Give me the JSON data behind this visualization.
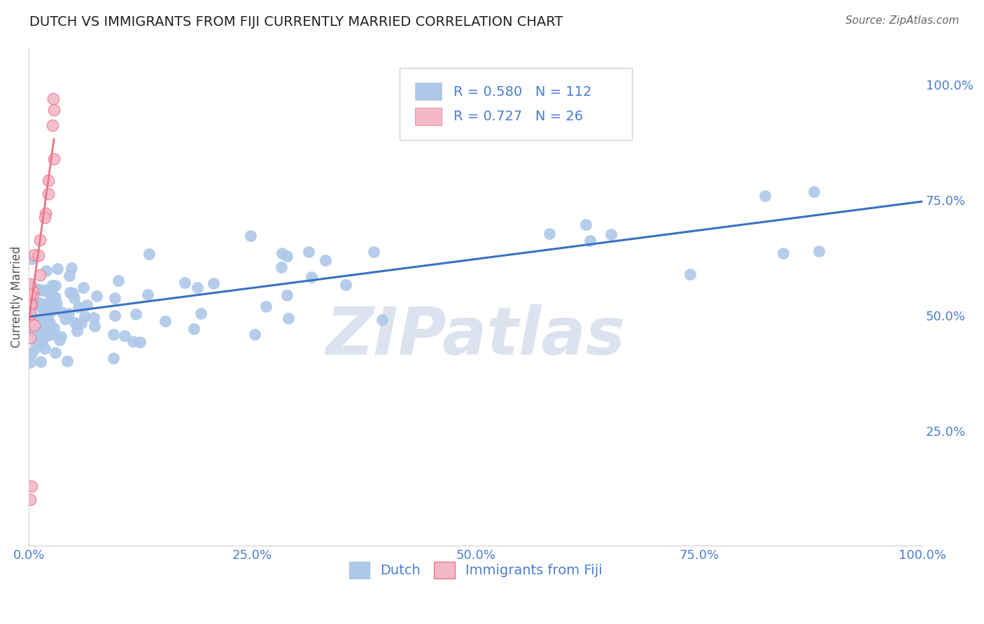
{
  "title": "DUTCH VS IMMIGRANTS FROM FIJI CURRENTLY MARRIED CORRELATION CHART",
  "source": "Source: ZipAtlas.com",
  "ylabel": "Currently Married",
  "ylabel_ticks": [
    "25.0%",
    "50.0%",
    "75.0%",
    "100.0%"
  ],
  "ylabel_tick_vals": [
    0.25,
    0.5,
    0.75,
    1.0
  ],
  "xtick_labels": [
    "0.0%",
    "25.0%",
    "50.0%",
    "75.0%",
    "100.0%"
  ],
  "xtick_vals": [
    0.0,
    0.25,
    0.5,
    0.75,
    1.0
  ],
  "legend_blue_r": "R = 0.580",
  "legend_blue_n": "N = 112",
  "legend_pink_r": "R = 0.727",
  "legend_pink_n": "N = 26",
  "legend_label_dutch": "Dutch",
  "legend_label_fiji": "Immigrants from Fiji",
  "blue_color": "#adc8e8",
  "blue_edge_color": "#adc8e8",
  "blue_line_color": "#3a72c4",
  "pink_color": "#f5b8c8",
  "pink_edge_color": "#e8758a",
  "pink_line_color": "#e8758a",
  "text_color_blue": "#4a7fd4",
  "background_color": "#ffffff",
  "grid_color": "#c8c8c8",
  "watermark_color": "#dce3ef",
  "title_fontsize": 14,
  "source_fontsize": 11,
  "tick_fontsize": 13,
  "ylabel_fontsize": 12,
  "legend_fontsize": 14,
  "blue_slope": 0.25,
  "blue_intercept": 0.497,
  "pink_slope_steep": 14.0,
  "pink_intercept": 0.49,
  "xlim": [
    0.0,
    1.0
  ],
  "ylim": [
    0.0,
    1.08
  ]
}
